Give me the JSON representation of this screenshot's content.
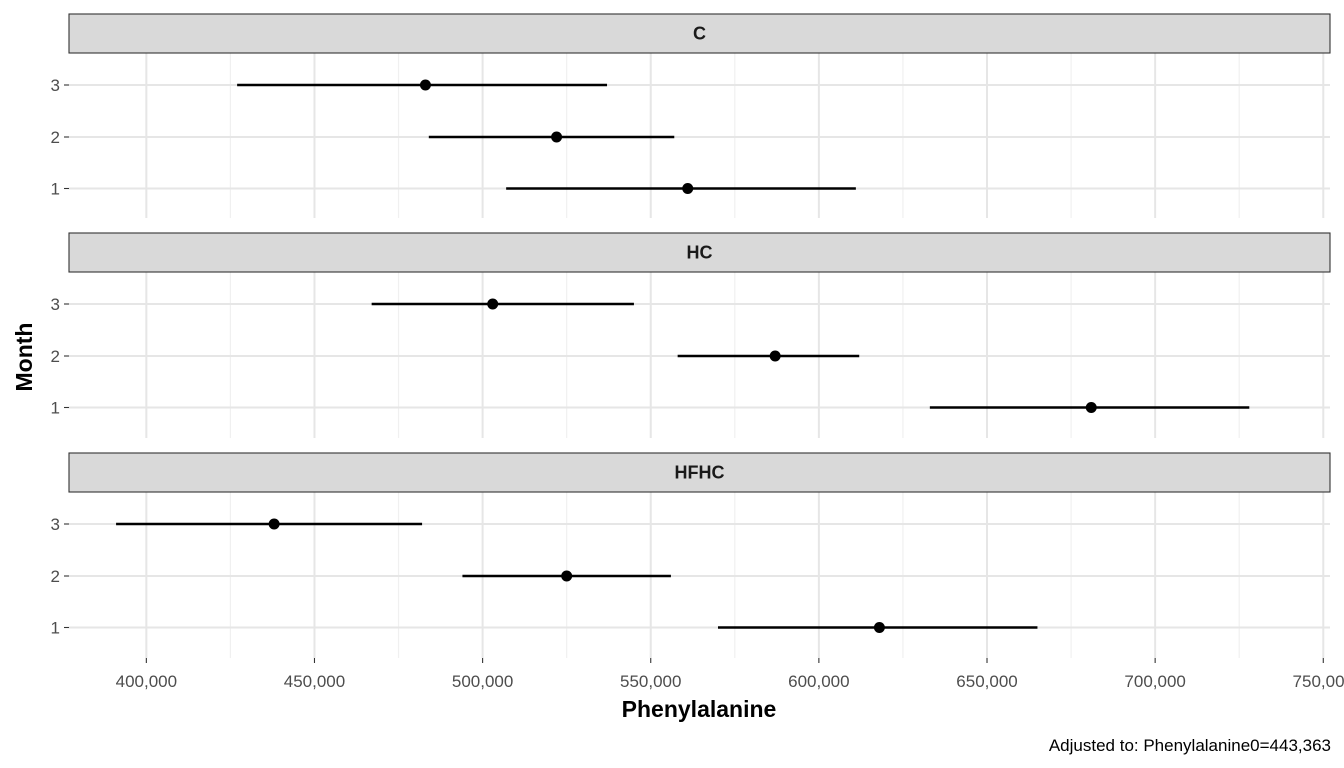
{
  "chart_data": {
    "type": "forest",
    "xlabel": "Phenylalanine",
    "ylabel": "Month",
    "caption": "Adjusted to: Phenylalanine0=443,363",
    "xlim": [
      377000,
      752000
    ],
    "x_ticks": [
      400000,
      450000,
      500000,
      550000,
      600000,
      650000,
      700000,
      750000
    ],
    "x_tick_labels": [
      "400,000",
      "450,000",
      "500,000",
      "550,000",
      "600,000",
      "650,000",
      "700,000",
      "750,000"
    ],
    "y_categories": [
      "1",
      "2",
      "3"
    ],
    "grid": true,
    "panels": [
      {
        "label": "C",
        "points": [
          {
            "month": "3",
            "estimate": 483000,
            "lower": 427000,
            "upper": 537000
          },
          {
            "month": "2",
            "estimate": 522000,
            "lower": 484000,
            "upper": 557000
          },
          {
            "month": "1",
            "estimate": 561000,
            "lower": 507000,
            "upper": 611000
          }
        ]
      },
      {
        "label": "HC",
        "points": [
          {
            "month": "3",
            "estimate": 503000,
            "lower": 467000,
            "upper": 545000
          },
          {
            "month": "2",
            "estimate": 587000,
            "lower": 558000,
            "upper": 612000
          },
          {
            "month": "1",
            "estimate": 681000,
            "lower": 633000,
            "upper": 728000
          }
        ]
      },
      {
        "label": "HFHC",
        "points": [
          {
            "month": "3",
            "estimate": 438000,
            "lower": 391000,
            "upper": 482000
          },
          {
            "month": "2",
            "estimate": 525000,
            "lower": 494000,
            "upper": 556000
          },
          {
            "month": "1",
            "estimate": 618000,
            "lower": 570000,
            "upper": 665000
          }
        ]
      }
    ]
  }
}
